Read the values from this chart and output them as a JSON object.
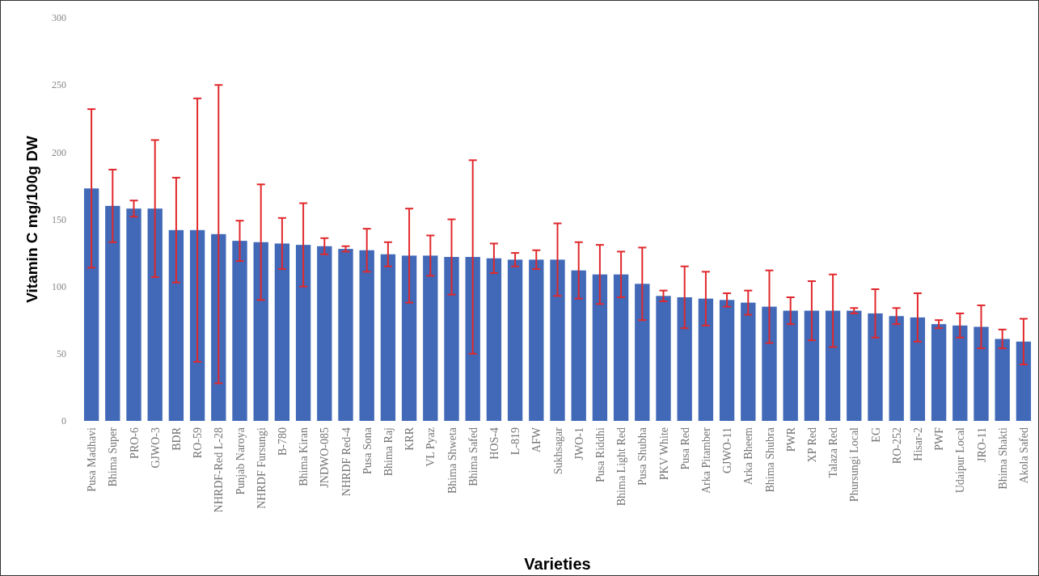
{
  "chart_data": {
    "type": "bar",
    "xlabel": "Varieties",
    "ylabel": "Vitamin C mg/100g DW",
    "categories": [
      "Pusa Madhavi",
      "Bhima Super",
      "PRO-6",
      "GJWO-3",
      "BDR",
      "RO-59",
      "NHRDF-Red L-28",
      "Punjab Naroya",
      "NHRDF Fursungi",
      "B-780",
      "Bhima Kiran",
      "JNDWO-085",
      "NHRDF Red-4",
      "Pusa Sona",
      "Bhima Raj",
      "KRR",
      "VL Pyaz",
      "Bhima Shweta",
      "Bhima Safed",
      "HOS-4",
      "L-819",
      "AFW",
      "Sukhsagar",
      "JWO-1",
      "Pusa Riddhi",
      "Bhima Light Red",
      "Pusa Shubha",
      "PKV White",
      "Pusa Red",
      "Arka Pitamber",
      "GJWO-11",
      "Arka Bheem",
      "Bhima Shubra",
      "PWR",
      "XP Red",
      "Talaza Red",
      "Phursungi Local",
      "EG",
      "RO-252",
      "Hisar-2",
      "PWF",
      "Udaipur Local",
      "JRO-11",
      "Bhima Shakti",
      "Akola Safed"
    ],
    "values": [
      173,
      160,
      158,
      158,
      142,
      142,
      139,
      134,
      133,
      132,
      131,
      130,
      128,
      127,
      124,
      123,
      123,
      122,
      122,
      121,
      120,
      120,
      120,
      112,
      109,
      109,
      102,
      93,
      92,
      91,
      90,
      88,
      85,
      82,
      82,
      82,
      82,
      80,
      78,
      77,
      72,
      71,
      70,
      61,
      59
    ],
    "errors": [
      59,
      27,
      6,
      51,
      39,
      98,
      111,
      15,
      43,
      19,
      31,
      6,
      2,
      16,
      9,
      35,
      15,
      28,
      72,
      11,
      5,
      7,
      27,
      21,
      22,
      17,
      27,
      4,
      23,
      20,
      5,
      9,
      27,
      10,
      22,
      27,
      2,
      18,
      6,
      18,
      3,
      9,
      16,
      7,
      17
    ],
    "color": "#4169b8",
    "ylim": [
      0,
      300
    ],
    "yticks": [
      0,
      50,
      100,
      150,
      200,
      250,
      300
    ],
    "grid": false
  }
}
